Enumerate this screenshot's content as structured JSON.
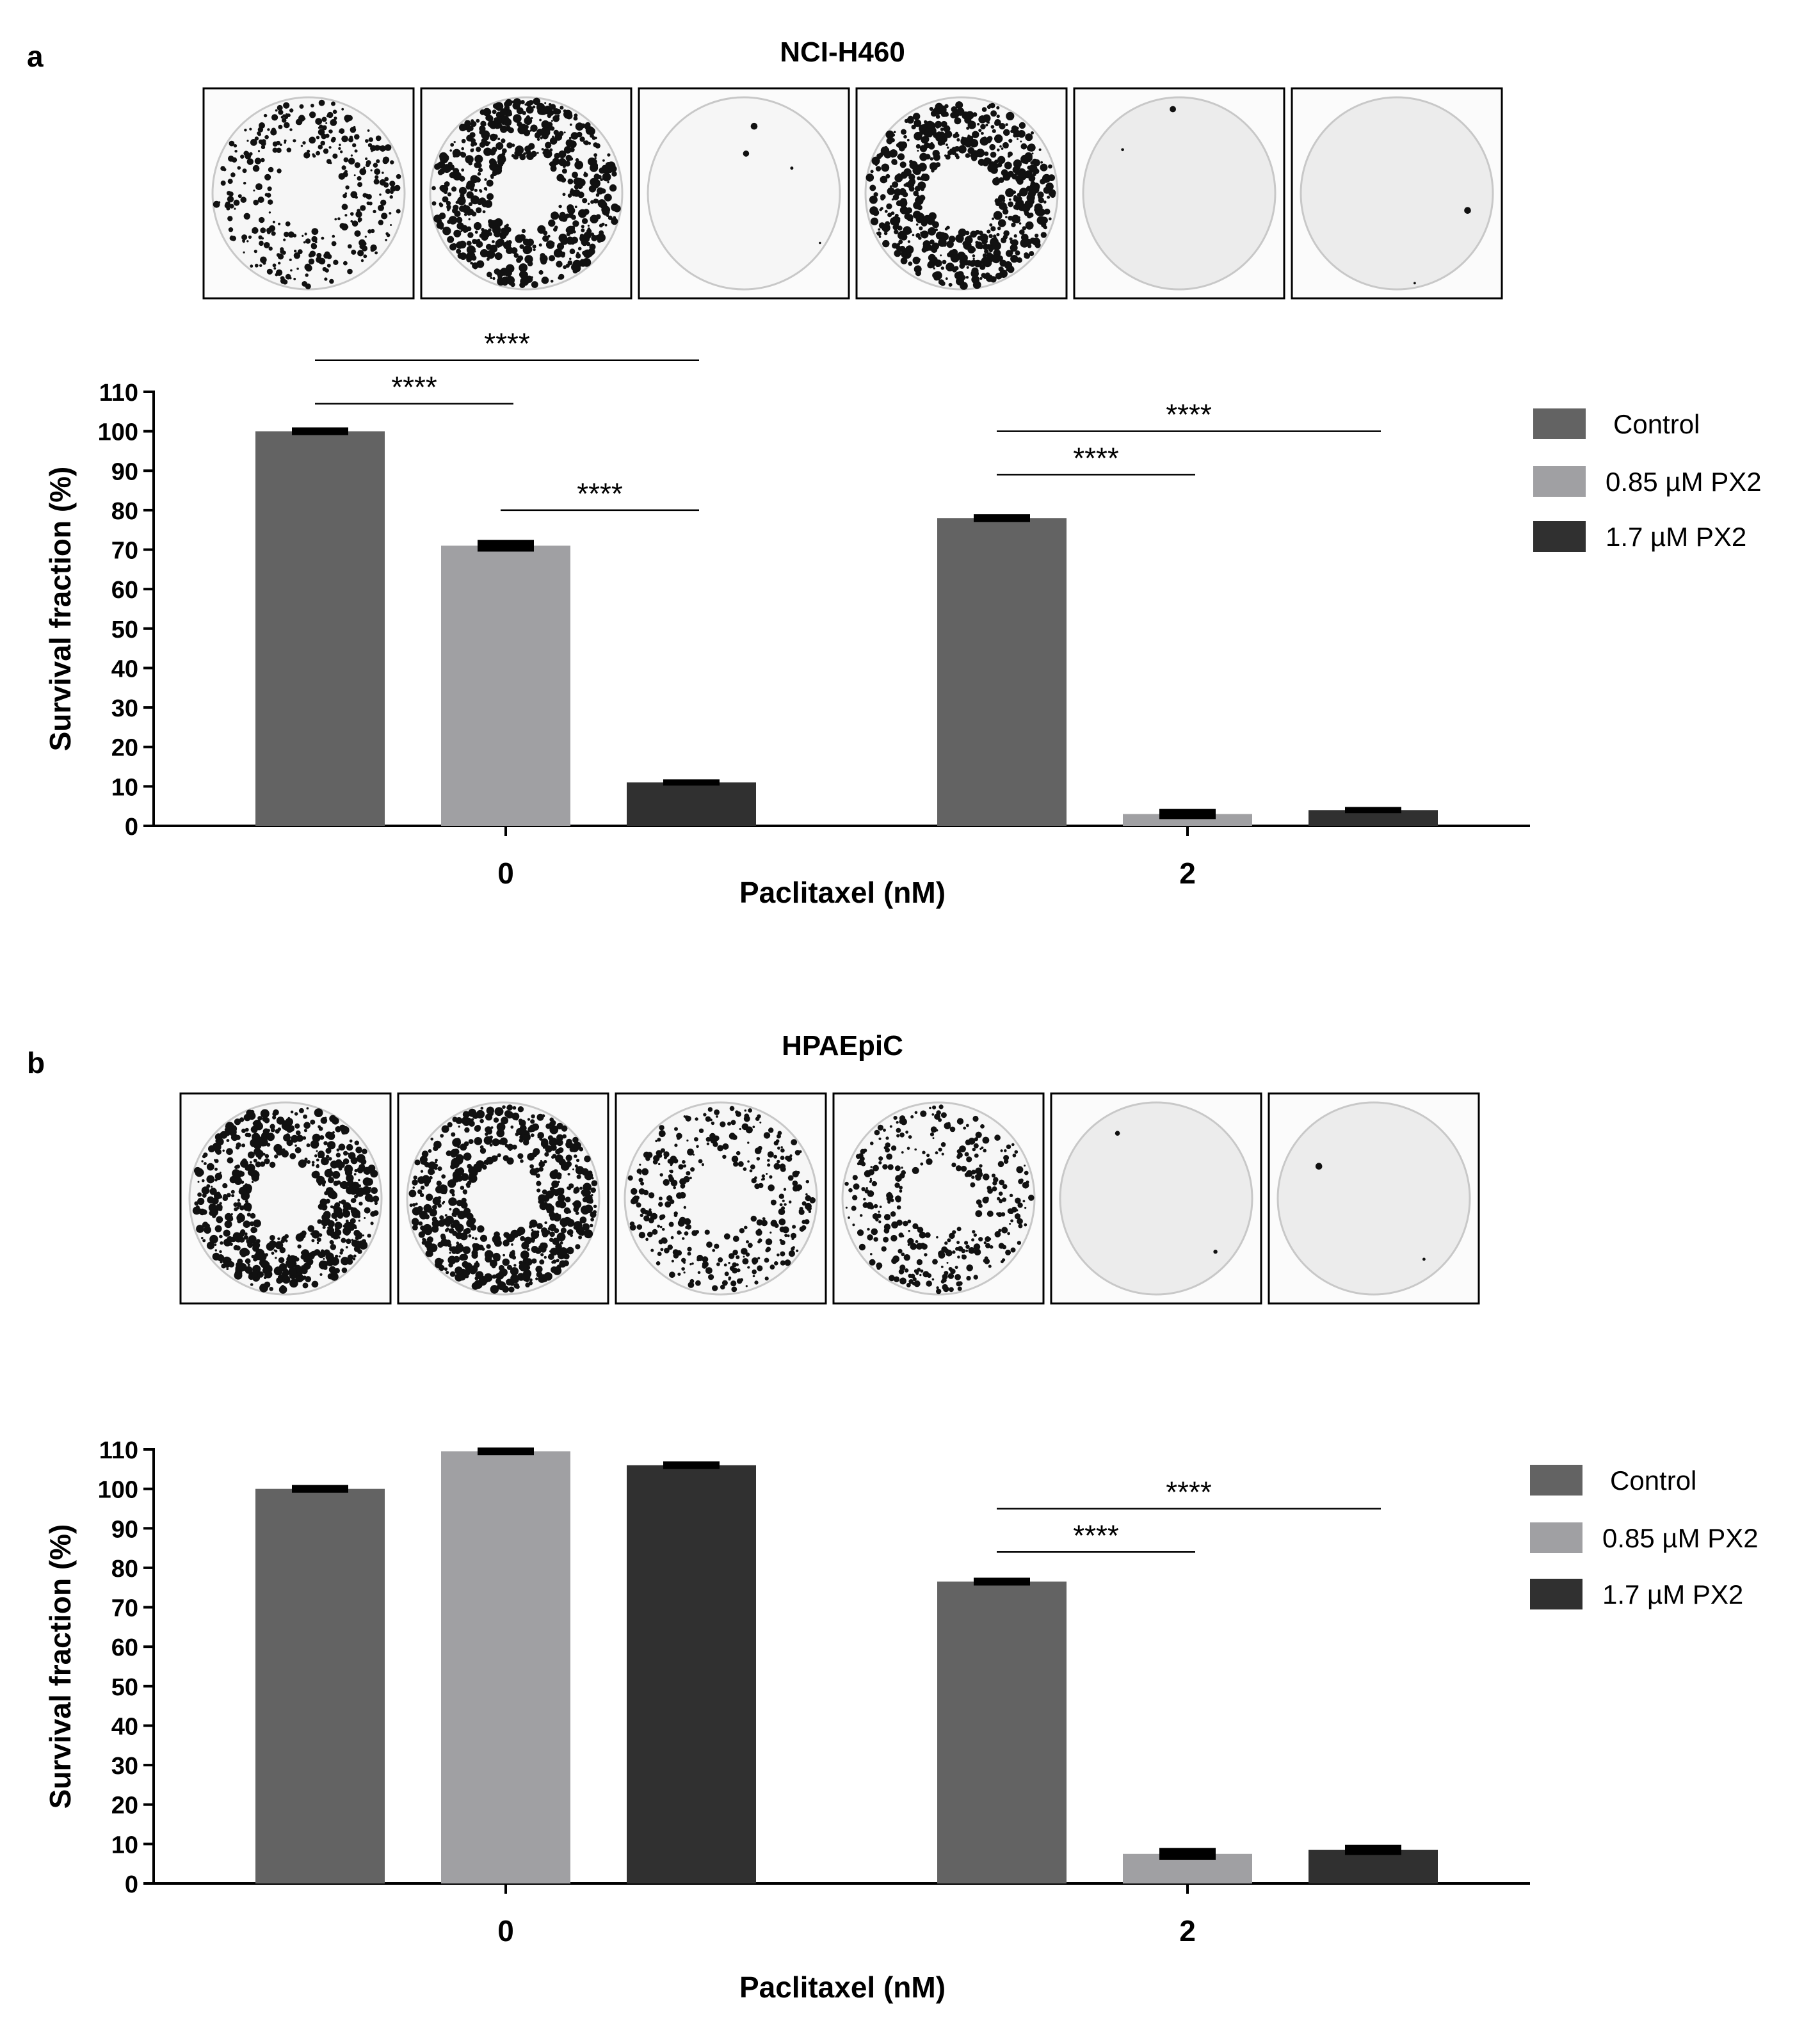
{
  "panels": [
    {
      "label": "a",
      "cell_line": "NCI-H460",
      "wells": [
        {
          "density": "medium"
        },
        {
          "density": "high"
        },
        {
          "density": "trace"
        },
        {
          "density": "high"
        },
        {
          "density": "empty"
        },
        {
          "density": "empty"
        }
      ],
      "chart_data": {
        "type": "bar",
        "xlabel": "Paclitaxel (nM)",
        "ylabel": "Survival fraction (%)",
        "ylim": [
          0,
          110
        ],
        "yticks": [
          0,
          10,
          20,
          30,
          40,
          50,
          60,
          70,
          80,
          90,
          100,
          110
        ],
        "categories": [
          "0",
          "2"
        ],
        "series": [
          {
            "name": "Control",
            "color": "#636363",
            "values": [
              100,
              78
            ],
            "errors": [
              0.5,
              0.5
            ]
          },
          {
            "name": "0.85 µM PX2",
            "color": "#a0a0a3",
            "values": [
              71,
              3
            ],
            "errors": [
              1,
              0.8
            ]
          },
          {
            "name": "1.7 µM PX2",
            "color": "#303030",
            "values": [
              11,
              4
            ],
            "errors": [
              0.3,
              0.3
            ]
          }
        ],
        "significance": [
          {
            "category": 0,
            "from": 0,
            "to": 2,
            "y": 118,
            "text": "****"
          },
          {
            "category": 0,
            "from": 0,
            "to": 1,
            "y": 107,
            "text": "****"
          },
          {
            "category": 0,
            "from": 1,
            "to": 2,
            "y": 80,
            "text": "****"
          },
          {
            "category": 1,
            "from": 0,
            "to": 2,
            "y": 100,
            "text": "****"
          },
          {
            "category": 1,
            "from": 0,
            "to": 1,
            "y": 89,
            "text": "****"
          }
        ],
        "legend_position": "right"
      }
    },
    {
      "label": "b",
      "cell_line": "HPAEpiC",
      "wells": [
        {
          "density": "high"
        },
        {
          "density": "high"
        },
        {
          "density": "medium"
        },
        {
          "density": "medium"
        },
        {
          "density": "empty"
        },
        {
          "density": "empty"
        }
      ],
      "chart_data": {
        "type": "bar",
        "xlabel": "Paclitaxel (nM)",
        "ylabel": "Survival fraction (%)",
        "ylim": [
          0,
          110
        ],
        "yticks": [
          0,
          10,
          20,
          30,
          40,
          50,
          60,
          70,
          80,
          90,
          100,
          110
        ],
        "categories": [
          "0",
          "2"
        ],
        "series": [
          {
            "name": "Control",
            "color": "#636363",
            "values": [
              100,
              76.5
            ],
            "errors": [
              0.5,
              0.5
            ]
          },
          {
            "name": "0.85 µM PX2",
            "color": "#a0a0a3",
            "values": [
              109.5,
              7.5
            ],
            "errors": [
              0.5,
              1
            ]
          },
          {
            "name": "1.7 µM PX2",
            "color": "#303030",
            "values": [
              106,
              8.5
            ],
            "errors": [
              0.5,
              0.8
            ]
          }
        ],
        "significance": [
          {
            "category": 1,
            "from": 0,
            "to": 2,
            "y": 95,
            "text": "****"
          },
          {
            "category": 1,
            "from": 0,
            "to": 1,
            "y": 84,
            "text": "****"
          }
        ],
        "legend_position": "right"
      }
    }
  ]
}
